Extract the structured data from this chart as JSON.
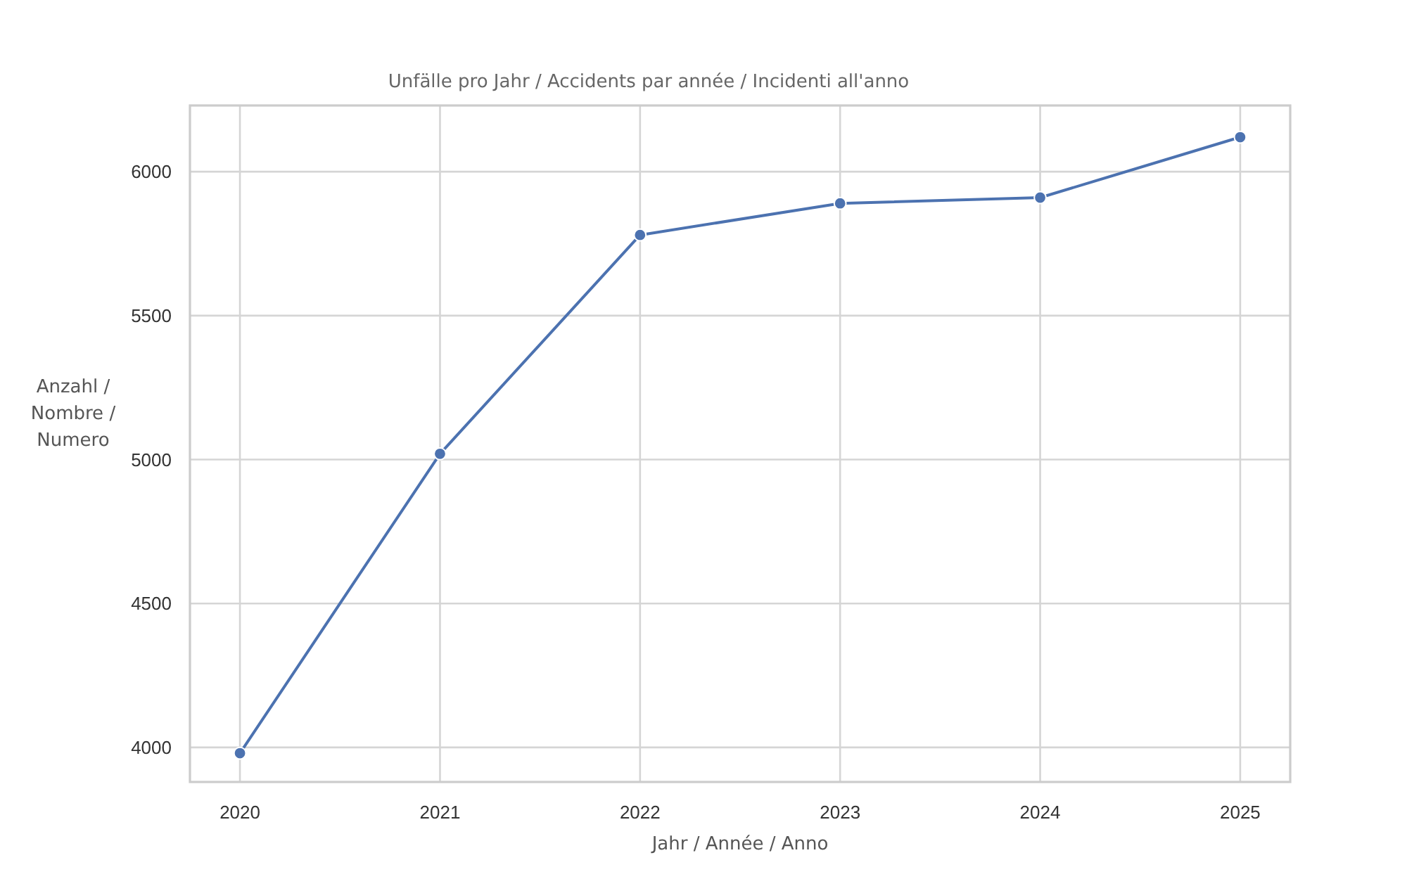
{
  "chart_data": {
    "type": "line",
    "title": "Unfälle pro Jahr / Accidents par année / Incidenti all'anno",
    "xlabel": "Jahr / Année / Anno",
    "ylabel": "Anzahl /\nNombre /\nNumero",
    "x": [
      2020,
      2021,
      2022,
      2023,
      2024,
      2025
    ],
    "values": [
      3980,
      5020,
      5780,
      5890,
      5910,
      6120
    ],
    "color": "#4c72b0",
    "xlim": [
      2019.75,
      2025.25
    ],
    "xticks": [
      2020,
      2021,
      2022,
      2023,
      2024,
      2025
    ],
    "ylim": [
      3880,
      6230
    ],
    "yticks": [
      4000,
      4500,
      5000,
      5500,
      6000
    ],
    "grid": true,
    "marker": "circle",
    "line_style": "solid"
  }
}
